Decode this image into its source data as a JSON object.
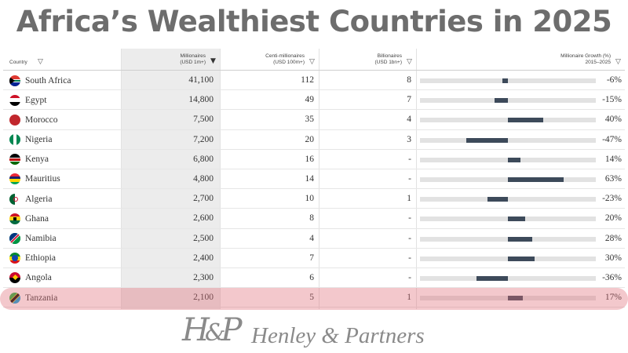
{
  "title": "Africa’s Wealthiest Countries in 2025",
  "table": {
    "columns": {
      "country": "Country",
      "millionaires_line1": "Millionaires",
      "millionaires_line2": "(USD 1m+)",
      "centi_line1": "Centi-millionaires",
      "centi_line2": "(USD 100m+)",
      "billionaires_line1": "Billionaires",
      "billionaires_line2": "(USD 1bn+)",
      "growth_line1": "Millionaire Growth (%)",
      "growth_line2": "2015–2025"
    },
    "sorted_column": "millionaires",
    "rows": [
      {
        "country": "South Africa",
        "flag": "south-africa-flag",
        "millionaires": "41,100",
        "centi": "112",
        "billionaires": "8",
        "growth": -6,
        "growth_label": "-6%"
      },
      {
        "country": "Egypt",
        "flag": "egypt-flag",
        "millionaires": "14,800",
        "centi": "49",
        "billionaires": "7",
        "growth": -15,
        "growth_label": "-15%"
      },
      {
        "country": "Morocco",
        "flag": "morocco-flag",
        "millionaires": "7,500",
        "centi": "35",
        "billionaires": "4",
        "growth": 40,
        "growth_label": "40%"
      },
      {
        "country": "Nigeria",
        "flag": "nigeria-flag",
        "millionaires": "7,200",
        "centi": "20",
        "billionaires": "3",
        "growth": -47,
        "growth_label": "-47%"
      },
      {
        "country": "Kenya",
        "flag": "kenya-flag",
        "millionaires": "6,800",
        "centi": "16",
        "billionaires": "-",
        "growth": 14,
        "growth_label": "14%"
      },
      {
        "country": "Mauritius",
        "flag": "mauritius-flag",
        "millionaires": "4,800",
        "centi": "14",
        "billionaires": "-",
        "growth": 63,
        "growth_label": "63%"
      },
      {
        "country": "Algeria",
        "flag": "algeria-flag",
        "millionaires": "2,700",
        "centi": "10",
        "billionaires": "1",
        "growth": -23,
        "growth_label": "-23%"
      },
      {
        "country": "Ghana",
        "flag": "ghana-flag",
        "millionaires": "2,600",
        "centi": "8",
        "billionaires": "-",
        "growth": 20,
        "growth_label": "20%"
      },
      {
        "country": "Namibia",
        "flag": "namibia-flag",
        "millionaires": "2,500",
        "centi": "4",
        "billionaires": "-",
        "growth": 28,
        "growth_label": "28%"
      },
      {
        "country": "Ethiopia",
        "flag": "ethiopia-flag",
        "millionaires": "2,400",
        "centi": "7",
        "billionaires": "-",
        "growth": 30,
        "growth_label": "30%"
      },
      {
        "country": "Angola",
        "flag": "angola-flag",
        "millionaires": "2,300",
        "centi": "6",
        "billionaires": "-",
        "growth": -36,
        "growth_label": "-36%"
      },
      {
        "country": "Tanzania",
        "flag": "tanzania-flag",
        "millionaires": "2,100",
        "centi": "5",
        "billionaires": "1",
        "growth": 17,
        "growth_label": "17%",
        "highlighted": true
      }
    ],
    "growth_scale": {
      "min": -100,
      "max": 100
    },
    "colors": {
      "bar": "#3d4a5a",
      "track": "#e2e2e2",
      "highlight": "#e06e78",
      "sorted_column_bg": "#ececec"
    }
  },
  "logo": {
    "mark": "H&P",
    "text": "Henley & Partners"
  }
}
